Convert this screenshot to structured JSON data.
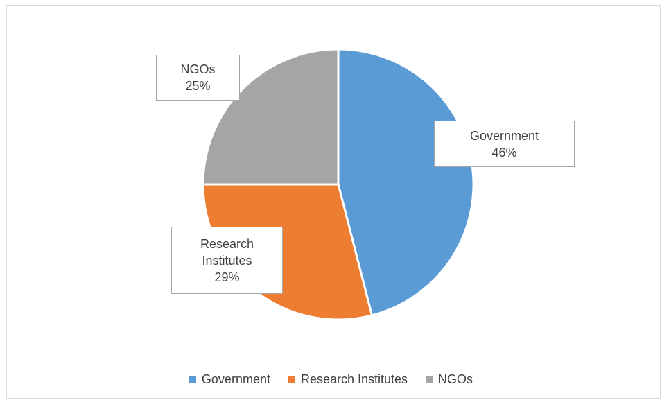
{
  "chart_data": {
    "type": "pie",
    "title": "",
    "slices": [
      {
        "name": "Government",
        "value": 46,
        "label": "46%",
        "color": "#5b9bd5"
      },
      {
        "name": "Research Institutes",
        "value": 29,
        "label": "29%",
        "color": "#ed7d31"
      },
      {
        "name": "NGOs",
        "value": 25,
        "label": "25%",
        "color": "#a5a5a5"
      }
    ],
    "legend_position": "bottom",
    "data_labels": "category and percent in callout boxes"
  },
  "labels": {
    "government": {
      "name": "Government",
      "pct": "46%"
    },
    "research": {
      "line1": "Research",
      "line2": "Institutes",
      "pct": "29%"
    },
    "ngos": {
      "name": "NGOs",
      "pct": "25%"
    }
  },
  "legend": [
    {
      "name": "Government",
      "color": "#5b9bd5"
    },
    {
      "name": "Research Institutes",
      "color": "#ed7d31"
    },
    {
      "name": "NGOs",
      "color": "#a5a5a5"
    }
  ]
}
